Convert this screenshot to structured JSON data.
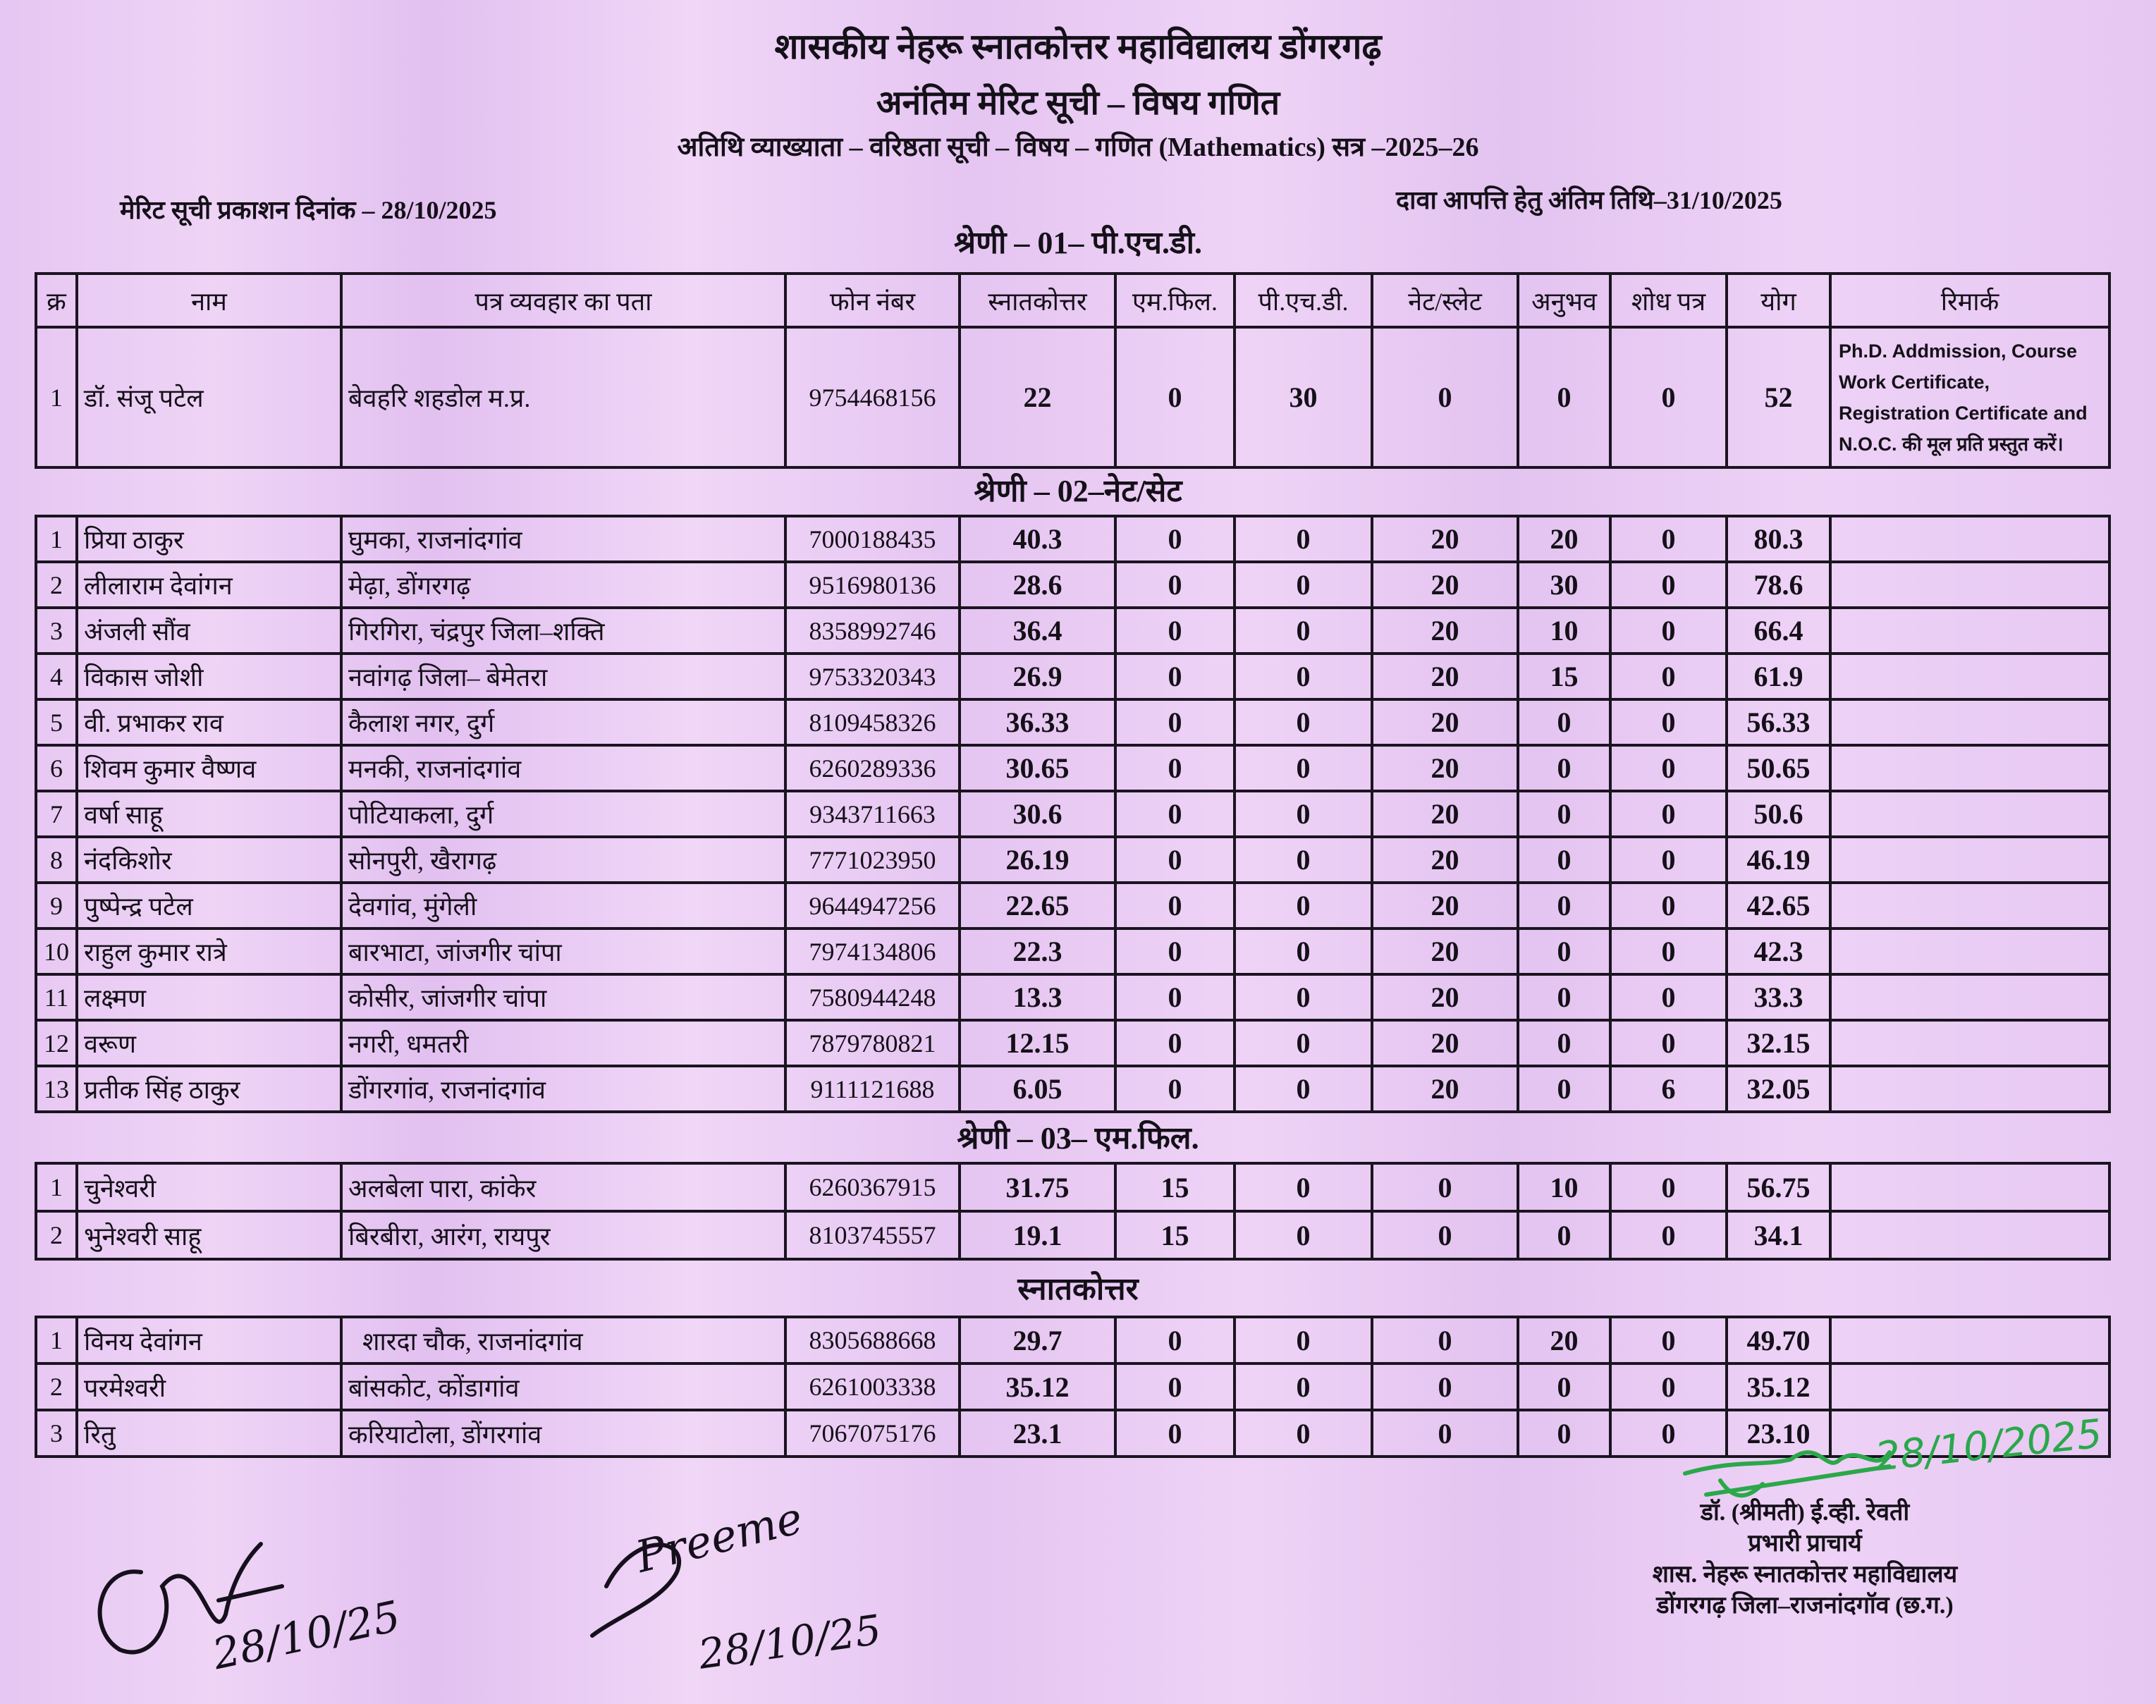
{
  "header": {
    "college": "शासकीय नेहरू स्नातकोत्तर महाविद्यालय डोंगरगढ़",
    "title": "अनंतिम मेरिट सूची – विषय गणित",
    "subtitle": "अतिथि व्याख्याता – वरिष्ठता सूची – विषय – गणित (Mathematics) सत्र –2025–26",
    "publish_date": "मेरिट सूची प्रकाशन दिनांक – 28/10/2025",
    "objection_date": "दावा आपत्ति हेतु अंतिम तिथि–31/10/2025"
  },
  "columns": [
    "क्र",
    "नाम",
    "पत्र व्यवहार का पता",
    "फोन नंबर",
    "स्नातकोत्तर",
    "एम.फिल.",
    "पी.एच.डी.",
    "नेट/स्लेट",
    "अनुभव",
    "शोध पत्र",
    "योग",
    "रिमार्क"
  ],
  "sections": [
    {
      "heading": "श्रेणी – 01– पी.एच.डी.",
      "rows": [
        [
          "1",
          "डॉ. संजू पटेल",
          "बेवहरि शहडोल म.प्र.",
          "9754468156",
          "22",
          "0",
          "30",
          "0",
          "0",
          "0",
          "52",
          "Ph.D. Addmission, Course Work Certificate, Registration Certificate and N.O.C. की मूल प्रति प्रस्तुत करें।"
        ]
      ]
    },
    {
      "heading": "श्रेणी – 02–नेट/सेट",
      "rows": [
        [
          "1",
          "प्रिया ठाकुर",
          "घुमका, राजनांदगांव",
          "7000188435",
          "40.3",
          "0",
          "0",
          "20",
          "20",
          "0",
          "80.3",
          ""
        ],
        [
          "2",
          "लीलाराम देवांगन",
          "मेढ़ा, डोंगरगढ़",
          "9516980136",
          "28.6",
          "0",
          "0",
          "20",
          "30",
          "0",
          "78.6",
          ""
        ],
        [
          "3",
          "अंजली सौंव",
          "गिरगिरा, चंद्रपुर जिला–शक्ति",
          "8358992746",
          "36.4",
          "0",
          "0",
          "20",
          "10",
          "0",
          "66.4",
          ""
        ],
        [
          "4",
          "विकास जोशी",
          "नवांगढ़ जिला– बेमेतरा",
          "9753320343",
          "26.9",
          "0",
          "0",
          "20",
          "15",
          "0",
          "61.9",
          ""
        ],
        [
          "5",
          "वी. प्रभाकर राव",
          "कैलाश नगर, दुर्ग",
          "8109458326",
          "36.33",
          "0",
          "0",
          "20",
          "0",
          "0",
          "56.33",
          ""
        ],
        [
          "6",
          "शिवम कुमार वैष्णव",
          "मनकी, राजनांदगांव",
          "6260289336",
          "30.65",
          "0",
          "0",
          "20",
          "0",
          "0",
          "50.65",
          ""
        ],
        [
          "7",
          "वर्षा साहू",
          "पोटियाकला, दुर्ग",
          "9343711663",
          "30.6",
          "0",
          "0",
          "20",
          "0",
          "0",
          "50.6",
          ""
        ],
        [
          "8",
          "नंदकिशोर",
          "सोनपुरी, खैरागढ़",
          "7771023950",
          "26.19",
          "0",
          "0",
          "20",
          "0",
          "0",
          "46.19",
          ""
        ],
        [
          "9",
          "पुष्पेन्द्र पटेल",
          "देवगांव, मुंगेली",
          "9644947256",
          "22.65",
          "0",
          "0",
          "20",
          "0",
          "0",
          "42.65",
          ""
        ],
        [
          "10",
          "राहुल कुमार रात्रे",
          "बारभाटा, जांजगीर चांपा",
          "7974134806",
          "22.3",
          "0",
          "0",
          "20",
          "0",
          "0",
          "42.3",
          ""
        ],
        [
          "11",
          "लक्ष्मण",
          "कोसीर, जांजगीर चांपा",
          "7580944248",
          "13.3",
          "0",
          "0",
          "20",
          "0",
          "0",
          "33.3",
          ""
        ],
        [
          "12",
          "वरूण",
          "नगरी, धमतरी",
          "7879780821",
          "12.15",
          "0",
          "0",
          "20",
          "0",
          "0",
          "32.15",
          ""
        ],
        [
          "13",
          "प्रतीक सिंह ठाकुर",
          "डोंगरगांव, राजनांदगांव",
          "9111121688",
          "6.05",
          "0",
          "0",
          "20",
          "0",
          "6",
          "32.05",
          ""
        ]
      ]
    },
    {
      "heading": "श्रेणी – 03– एम.फिल.",
      "rows": [
        [
          "1",
          "चुनेश्वरी",
          "अलबेला पारा, कांकेर",
          "6260367915",
          "31.75",
          "15",
          "0",
          "0",
          "10",
          "0",
          "56.75",
          ""
        ],
        [
          "2",
          "भुनेश्वरी साहू",
          "बिरबीरा, आरंग, रायपुर",
          "8103745557",
          "19.1",
          "15",
          "0",
          "0",
          "0",
          "0",
          "34.1",
          ""
        ]
      ]
    },
    {
      "heading": "स्नातकोत्तर",
      "rows": [
        [
          "1",
          "विनय देवांगन",
          "शारदा चौक, राजनांदगांव",
          "8305688668",
          "29.7",
          "0",
          "0",
          "0",
          "20",
          "0",
          "49.70",
          ""
        ],
        [
          "2",
          "परमेश्वरी",
          "बांसकोट, कोंडागांव",
          "6261003338",
          "35.12",
          "0",
          "0",
          "0",
          "0",
          "0",
          "35.12",
          ""
        ],
        [
          "3",
          "रितु",
          "करियाटोला, डोंगरगांव",
          "7067075176",
          "23.1",
          "0",
          "0",
          "0",
          "0",
          "0",
          "23.10",
          ""
        ]
      ]
    }
  ],
  "signatory": {
    "name": "डॉ. (श्रीमती) ई.व्ही. रेवती",
    "designation": "प्रभारी प्राचार्य",
    "institution": "शास. नेहरू स्नातकोत्तर महाविद्यालय",
    "location": "डोंगरगढ़ जिला–राजनांदगॉव (छ.ग.)",
    "handwritten_date": "28/10/2025"
  },
  "handwritten_signatures": [
    {
      "date": "28/10/25"
    },
    {
      "text": "Preeme",
      "date": "28/10/25"
    }
  ],
  "colors": {
    "paper": "#e9cbf4",
    "ink": "#141018",
    "green_ink": "#2aa84a"
  }
}
